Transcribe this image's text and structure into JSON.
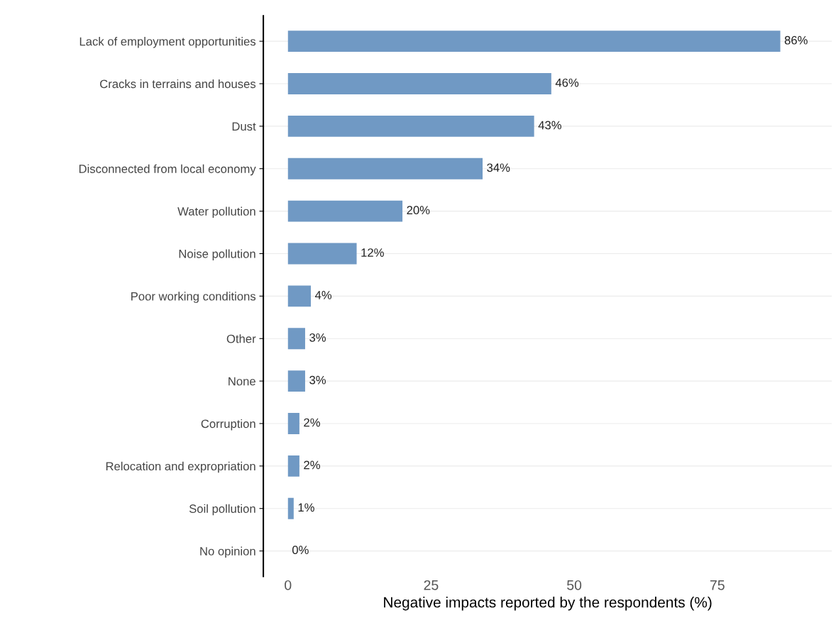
{
  "chart_data": {
    "type": "bar",
    "orientation": "horizontal",
    "categories": [
      "Lack of employment opportunities",
      "Cracks in terrains and houses",
      "Dust",
      "Disconnected from local economy",
      "Water pollution",
      "Noise pollution",
      "Poor working conditions",
      "Other",
      "None",
      "Corruption",
      "Relocation and expropriation",
      "Soil pollution",
      "No opinion"
    ],
    "values": [
      86,
      46,
      43,
      34,
      20,
      12,
      4,
      3,
      3,
      2,
      2,
      1,
      0
    ],
    "value_labels": [
      "86%",
      "46%",
      "43%",
      "34%",
      "20%",
      "12%",
      "4%",
      "3%",
      "3%",
      "2%",
      "2%",
      "1%",
      "0%"
    ],
    "color": "#7099c4",
    "xlabel": "Negative impacts reported by the respondents (%)",
    "xlim": [
      -4.3,
      95
    ],
    "xticks": [
      0,
      25,
      50,
      75
    ],
    "grid": "y",
    "legend": false
  }
}
